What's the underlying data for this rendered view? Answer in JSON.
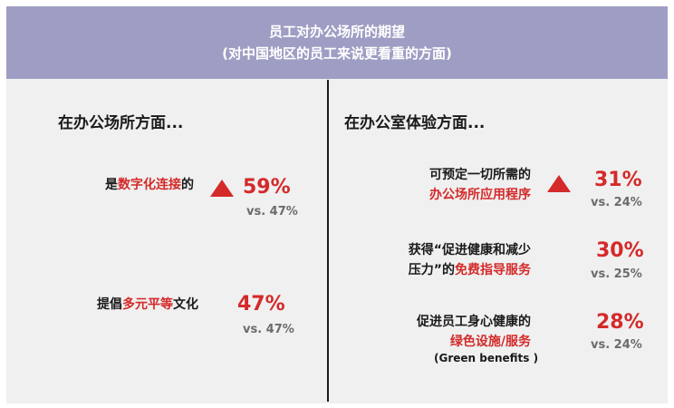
{
  "header": {
    "title": "员工对办公场所的期望",
    "subtitle": "(对中国地区的员工来说更看重的方面)"
  },
  "left": {
    "title": "在办公场所方面...",
    "items": [
      {
        "pre": "是",
        "hl": "数字化连接",
        "post": "的",
        "pct": "59%",
        "vs": "vs. 47%"
      },
      {
        "pre": "提倡",
        "hl": "多元平等",
        "post": "文化",
        "pct": "47%",
        "vs": "vs. 47%"
      }
    ]
  },
  "right": {
    "title": "在办公室体验方面...",
    "items": [
      {
        "line1": "可预定一切所需的",
        "line2_hl": "办公场所应用程序",
        "pct": "31%",
        "vs": "vs. 24%"
      },
      {
        "line1": "获得“促进健康和减少",
        "line2_pre": "压力”的",
        "line2_hl": "免费指导服务",
        "pct": "30%",
        "vs": "vs. 25%"
      },
      {
        "line1": "促进员工身心健康的",
        "line2_hl": "绿色设施/服务",
        "note": "(Green benefits )",
        "pct": "28%",
        "vs": "vs. 24%"
      }
    ]
  },
  "colors": {
    "header_bg": "#9e9ec4",
    "accent": "#d42a2a",
    "panel_bg": "#f0f0f0"
  },
  "icons": [
    "up-triangle-icon"
  ]
}
